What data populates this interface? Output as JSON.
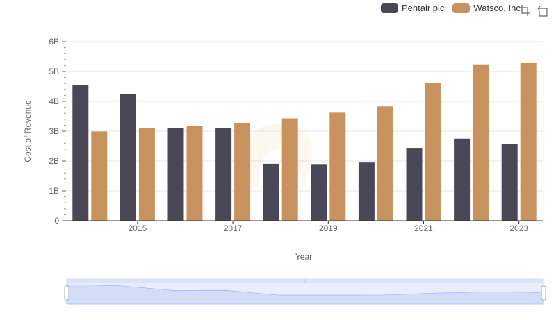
{
  "chart_data": {
    "type": "bar",
    "x": [
      2014,
      2015,
      2016,
      2017,
      2018,
      2019,
      2020,
      2021,
      2022,
      2023
    ],
    "x_tick_labels": [
      "2015",
      "2017",
      "2019",
      "2021",
      "2023"
    ],
    "y_tick_labels": [
      "0",
      "1B",
      "2B",
      "3B",
      "4B",
      "5B",
      "6B"
    ],
    "ylim": [
      0,
      6000000000
    ],
    "xlabel": "Year",
    "ylabel": "Cost of Revenue",
    "legend_position": "top-right",
    "grid": true,
    "series": [
      {
        "name": "Pentair plc",
        "color": "#4a4856",
        "values": [
          4550000000,
          4250000000,
          3100000000,
          3110000000,
          1910000000,
          1900000000,
          1950000000,
          2440000000,
          2750000000,
          2580000000
        ]
      },
      {
        "name": "Watsco, Inc.",
        "color": "#c8925f",
        "values": [
          2990000000,
          3110000000,
          3180000000,
          3280000000,
          3430000000,
          3620000000,
          3830000000,
          4610000000,
          5240000000,
          5280000000
        ]
      }
    ]
  },
  "toolbox": {
    "icons": [
      "zoom-select-icon",
      "zoom-reset-icon"
    ]
  }
}
